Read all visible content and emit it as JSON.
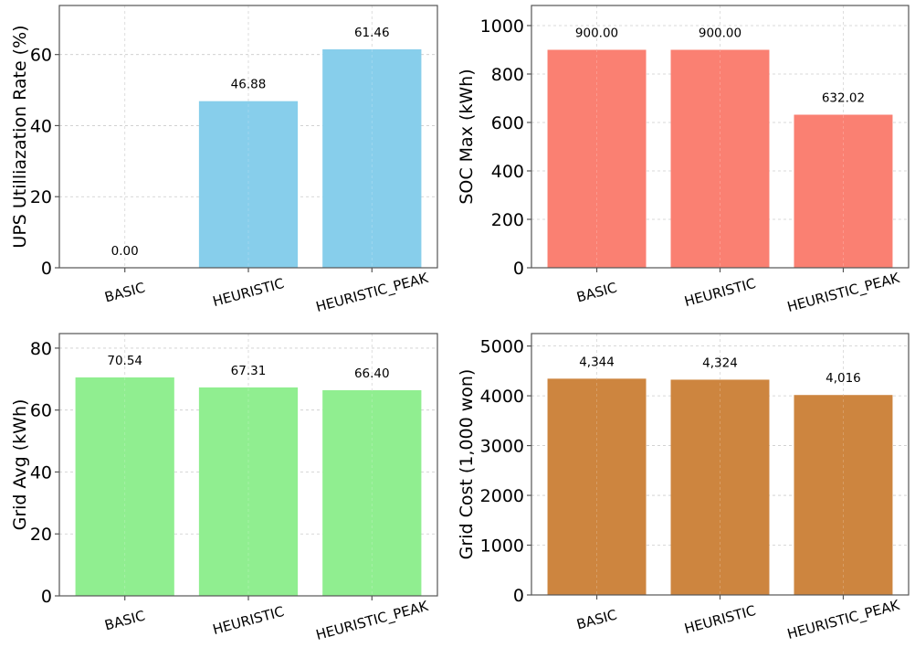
{
  "chart_data": [
    {
      "type": "bar",
      "title": "",
      "xlabel": "",
      "ylabel": "UPS Utilliazation Rate (%)",
      "categories": [
        "BASIC",
        "HEURISTIC",
        "HEURISTIC_PEAK"
      ],
      "values": [
        0.0,
        46.88,
        61.46
      ],
      "data_labels": [
        "0.00",
        "46.88",
        "61.46"
      ],
      "ylim": [
        0,
        73.8
      ],
      "yticks": [
        0,
        20,
        40,
        60
      ],
      "color": "#87ceeb",
      "grid": true
    },
    {
      "type": "bar",
      "title": "",
      "xlabel": "",
      "ylabel": "SOC Max (kWh)",
      "categories": [
        "BASIC",
        "HEURISTIC",
        "HEURISTIC_PEAK"
      ],
      "values": [
        900.0,
        900.0,
        632.02
      ],
      "data_labels": [
        "900.00",
        "900.00",
        "632.02"
      ],
      "ylim": [
        0,
        1083
      ],
      "yticks": [
        0,
        200,
        400,
        600,
        800,
        1000
      ],
      "color": "#fa8072",
      "grid": true
    },
    {
      "type": "bar",
      "title": "",
      "xlabel": "",
      "ylabel": "Grid Avg (kWh)",
      "categories": [
        "BASIC",
        "HEURISTIC",
        "HEURISTIC_PEAK"
      ],
      "values": [
        70.54,
        67.31,
        66.4
      ],
      "data_labels": [
        "70.54",
        "67.31",
        "66.40"
      ],
      "ylim": [
        0,
        84.7
      ],
      "yticks": [
        0,
        20,
        40,
        60,
        80
      ],
      "color": "#90ee90",
      "grid": true
    },
    {
      "type": "bar",
      "title": "",
      "xlabel": "",
      "ylabel": "Grid Cost (1,000 won)",
      "categories": [
        "BASIC",
        "HEURISTIC",
        "HEURISTIC_PEAK"
      ],
      "values": [
        4344,
        4324,
        4016
      ],
      "data_labels": [
        "4,344",
        "4,324",
        "4,016"
      ],
      "ylim": [
        0,
        5250
      ],
      "yticks": [
        0,
        1000,
        2000,
        3000,
        4000,
        5000
      ],
      "color": "#cd853f",
      "grid": true
    }
  ]
}
